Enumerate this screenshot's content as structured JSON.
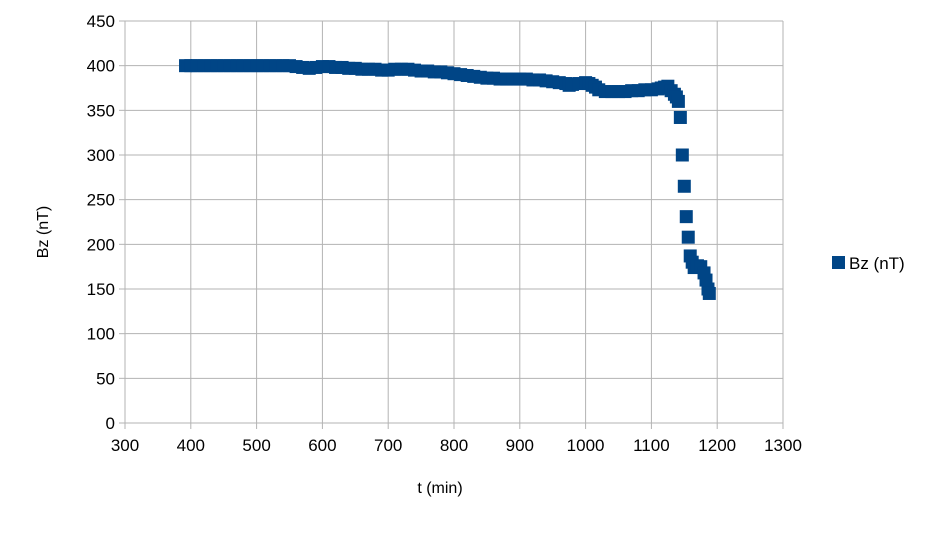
{
  "chart_data": {
    "type": "scatter",
    "title": "",
    "xlabel": "t (min)",
    "ylabel": "Bz (nT)",
    "xlim": [
      300,
      1300
    ],
    "ylim": [
      0,
      450
    ],
    "xticks": [
      300,
      400,
      500,
      600,
      700,
      800,
      900,
      1000,
      1100,
      1200,
      1300
    ],
    "yticks": [
      0,
      50,
      100,
      150,
      200,
      250,
      300,
      350,
      400,
      450
    ],
    "grid": true,
    "legend": "right",
    "marker": "square",
    "series": [
      {
        "name": "Bz (nT)",
        "color": "#004586",
        "x": [
          392,
          400,
          410,
          420,
          430,
          440,
          450,
          460,
          470,
          480,
          490,
          500,
          510,
          520,
          530,
          540,
          550,
          560,
          570,
          580,
          590,
          600,
          610,
          620,
          630,
          640,
          650,
          660,
          670,
          680,
          690,
          700,
          710,
          720,
          730,
          740,
          750,
          760,
          770,
          780,
          790,
          800,
          810,
          820,
          830,
          840,
          850,
          860,
          870,
          880,
          890,
          900,
          910,
          920,
          930,
          940,
          950,
          960,
          970,
          975,
          980,
          990,
          1000,
          1005,
          1010,
          1015,
          1020,
          1030,
          1040,
          1050,
          1060,
          1070,
          1080,
          1090,
          1100,
          1110,
          1115,
          1120,
          1125,
          1130,
          1135,
          1138,
          1141,
          1144,
          1147,
          1150,
          1153,
          1156,
          1159,
          1162,
          1165,
          1170,
          1175,
          1180,
          1183,
          1186,
          1188
        ],
        "y": [
          400,
          400,
          400,
          400,
          400,
          400,
          400,
          400,
          400,
          400,
          400,
          400,
          400,
          400,
          400,
          400,
          400,
          399,
          398,
          397,
          398,
          399,
          399,
          398,
          398,
          397,
          397,
          396,
          396,
          396,
          395,
          395,
          396,
          396,
          396,
          395,
          394,
          394,
          393,
          393,
          392,
          391,
          390,
          389,
          388,
          387,
          386,
          386,
          385,
          385,
          385,
          385,
          385,
          384,
          384,
          383,
          382,
          381,
          380,
          378,
          379,
          380,
          381,
          380,
          378,
          376,
          373,
          371,
          371,
          371,
          371,
          372,
          372,
          373,
          373,
          374,
          375,
          376,
          377,
          372,
          368,
          365,
          360,
          342,
          300,
          265,
          231,
          208,
          187,
          180,
          174,
          176,
          175,
          168,
          160,
          150,
          145
        ]
      }
    ]
  }
}
